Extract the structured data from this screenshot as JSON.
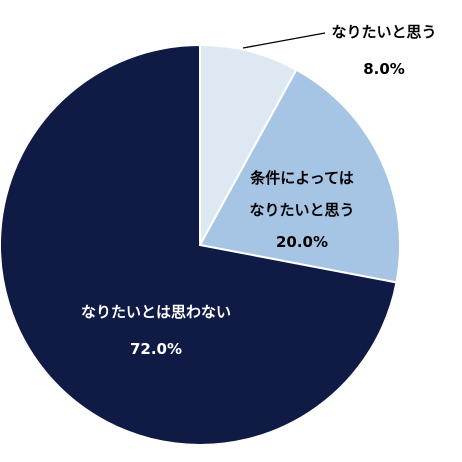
{
  "chart_data": {
    "type": "pie",
    "title": "",
    "start_angle": "top (12 o'clock), clockwise",
    "slices": [
      {
        "label_lines": [
          "なりたいと思う"
        ],
        "value": 8.0,
        "value_label": "8.0%",
        "color": "#dde8f3"
      },
      {
        "label_lines": [
          "条件によっては",
          "なりたいと思う"
        ],
        "value": 20.0,
        "value_label": "20.0%",
        "color": "#a6c4e4"
      },
      {
        "label_lines": [
          "なりたいとは思わない"
        ],
        "value": 72.0,
        "value_label": "72.0%",
        "color": "#0f1a45"
      }
    ],
    "slice_border_color": "#ffffff",
    "legend": "none",
    "callout_line_for_first_slice": true
  }
}
